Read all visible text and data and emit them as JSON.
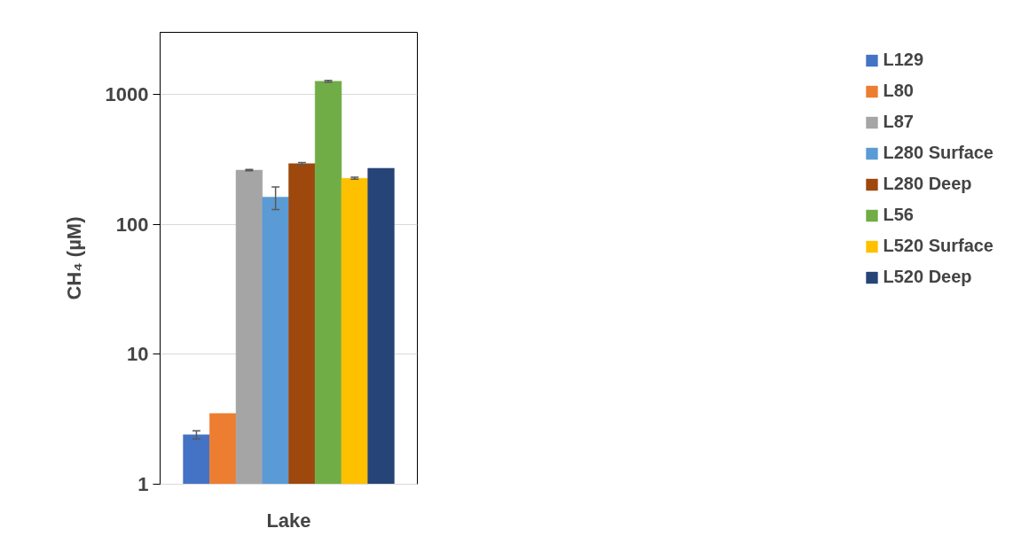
{
  "chart_data": {
    "type": "bar",
    "xlabel": "Lake",
    "ylabel": "CH₄ (µM)",
    "categories": [
      null
    ],
    "series": [
      {
        "name": "L129",
        "color": "#4472c4",
        "values": [
          2.4
        ],
        "errors": [
          0.17
        ]
      },
      {
        "name": "L80",
        "color": "#ed7d31",
        "values": [
          3.5
        ]
      },
      {
        "name": "L87",
        "color": "#a5a5a5",
        "values": [
          261
        ],
        "errors": [
          3
        ]
      },
      {
        "name": "L280 Surface",
        "color": "#5b9bd5",
        "values": [
          162
        ],
        "errors": [
          32
        ]
      },
      {
        "name": "L280 Deep",
        "color": "#9e480e",
        "values": [
          293
        ],
        "errors": [
          5
        ]
      },
      {
        "name": "L56",
        "color": "#70ad47",
        "values": [
          1260
        ],
        "errors": [
          20
        ]
      },
      {
        "name": "L520 Surface",
        "color": "#ffc000",
        "values": [
          226
        ],
        "errors": [
          4
        ]
      },
      {
        "name": "L520 Deep",
        "color": "#264478",
        "values": [
          270
        ]
      }
    ],
    "log": true,
    "ylim": [
      1,
      3000
    ],
    "yticks": [
      1,
      10,
      100,
      1000
    ],
    "grid": "y",
    "legend": "right"
  }
}
